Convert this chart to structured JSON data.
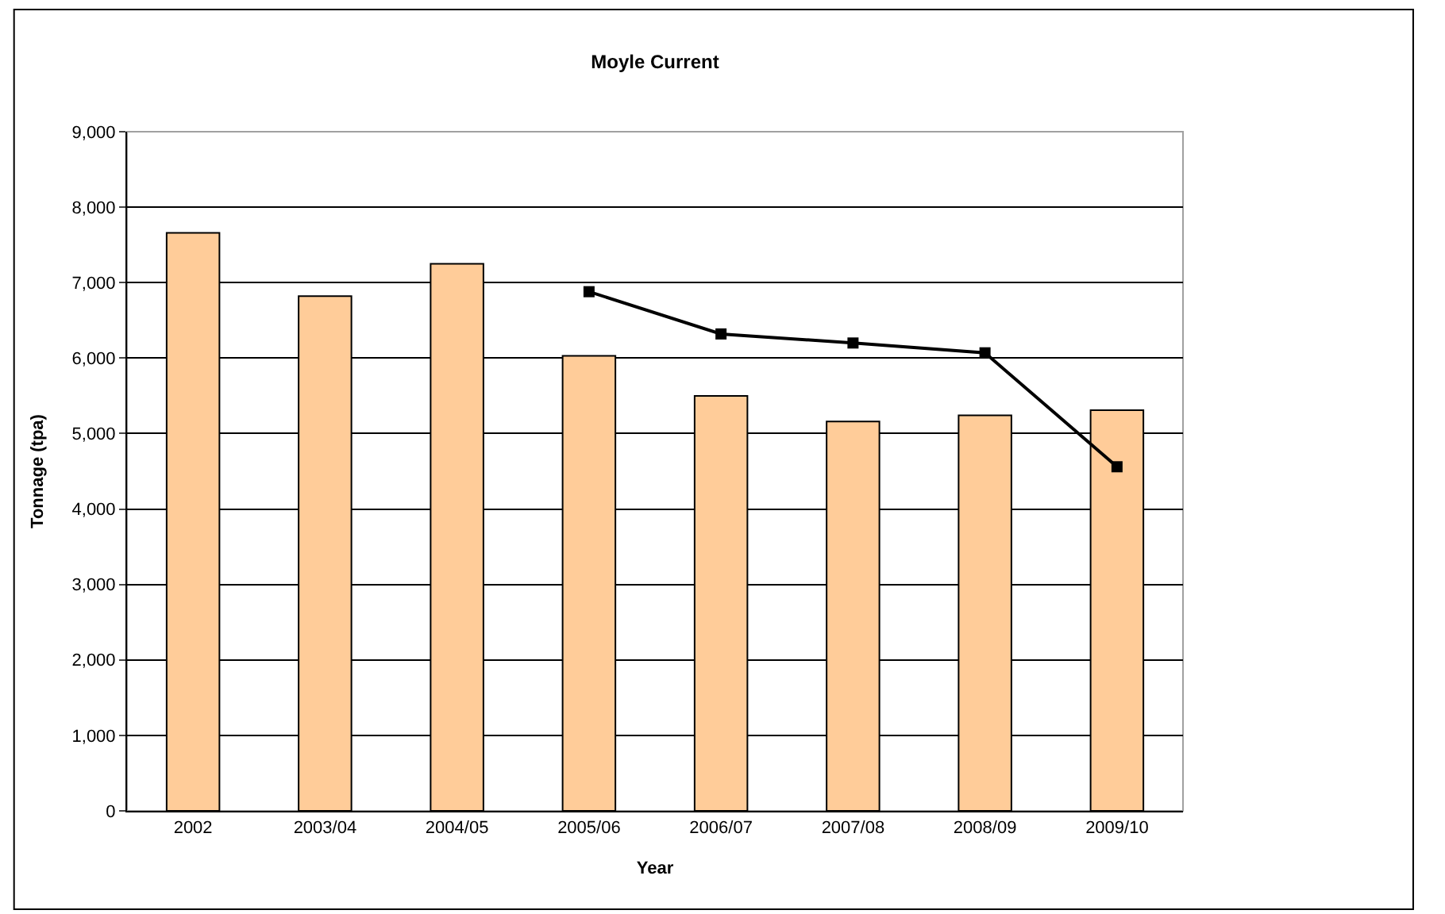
{
  "chart_data": {
    "type": "bar",
    "title": "Moyle Current",
    "xlabel": "Year",
    "ylabel": "Tonnage (tpa)",
    "categories": [
      "2002",
      "2003/04",
      "2004/05",
      "2005/06",
      "2006/07",
      "2007/08",
      "2008/09",
      "2009/10"
    ],
    "series": [
      {
        "color": "#ffcc99",
        "values": [
          7660,
          6820,
          7250,
          6030,
          5500,
          5160,
          5240,
          5310
        ]
      },
      {
        "type": "line",
        "color": "#000000",
        "marker": "square",
        "values": [
          null,
          null,
          null,
          6880,
          6320,
          6200,
          6070,
          4560
        ]
      }
    ],
    "ylim": [
      0,
      9000
    ],
    "yticks": [
      {
        "value": 0,
        "label": "0"
      },
      {
        "value": 1000,
        "label": "1,000"
      },
      {
        "value": 2000,
        "label": "2,000"
      },
      {
        "value": 3000,
        "label": "3,000"
      },
      {
        "value": 4000,
        "label": "4,000"
      },
      {
        "value": 5000,
        "label": "5,000"
      },
      {
        "value": 6000,
        "label": "6,000"
      },
      {
        "value": 7000,
        "label": "7,000"
      },
      {
        "value": 8000,
        "label": "8,000"
      },
      {
        "value": 9000,
        "label": "9,000"
      }
    ],
    "grid": "y"
  }
}
